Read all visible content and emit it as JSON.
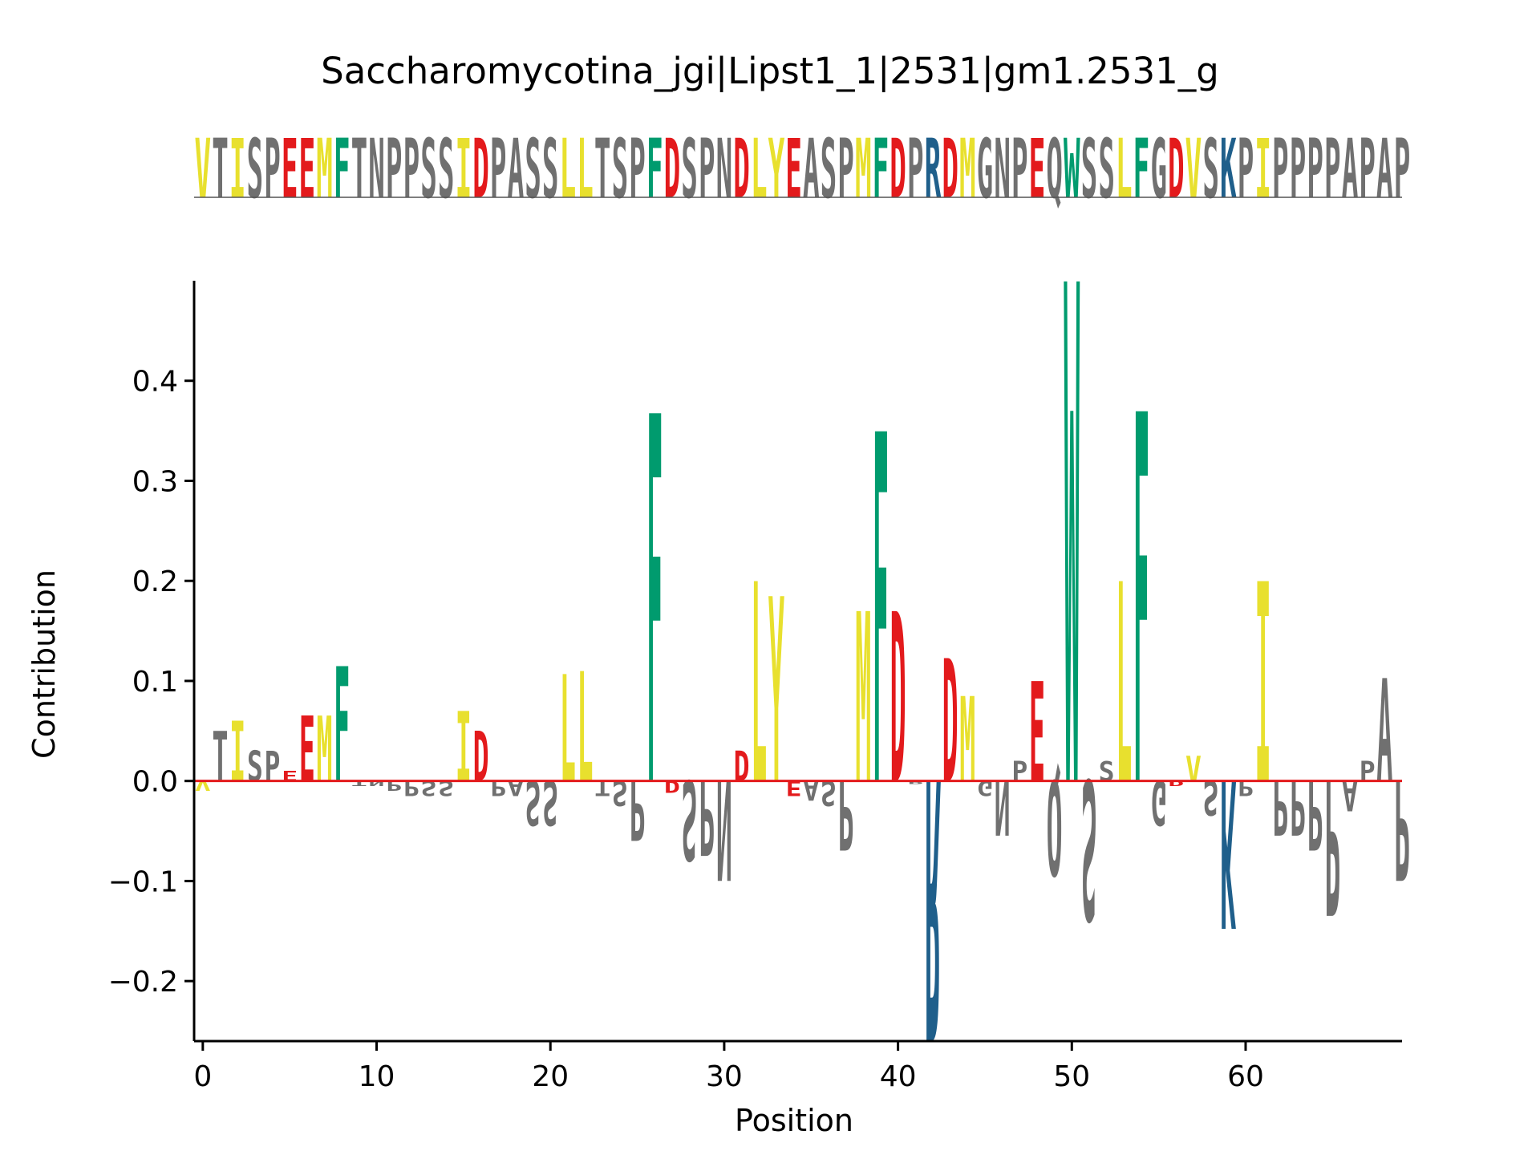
{
  "chart_data": {
    "type": "sequence-logo",
    "title": "Saccharomycotina_jgi|Lipst1_1|2531|gm1.2531_g",
    "xlabel": "Position",
    "ylabel": "Contribution",
    "xlim": [
      -0.5,
      69
    ],
    "ylim": [
      -0.26,
      0.5
    ],
    "xticks": [
      0,
      10,
      20,
      30,
      40,
      50,
      60
    ],
    "yticks": [
      -0.2,
      -0.1,
      0.0,
      0.1,
      0.2,
      0.3,
      0.4
    ],
    "ytick_labels": [
      "−0.2",
      "−0.1",
      "0.0",
      "0.1",
      "0.2",
      "0.3",
      "0.4"
    ],
    "xtick_labels": [
      "0",
      "10",
      "20",
      "30",
      "40",
      "50",
      "60"
    ],
    "colors": {
      "yellow": "#e8e02e",
      "gray": "#707070",
      "red": "#e31a1c",
      "green": "#009b6e",
      "blue": "#1f5f8b",
      "zero_line": "#e31a1c"
    },
    "residue_color_map": {
      "V": "yellow",
      "I": "yellow",
      "L": "yellow",
      "M": "yellow",
      "Y": "yellow",
      "E": "red",
      "D": "red",
      "F": "green",
      "W": "green",
      "R": "blue",
      "K": "blue",
      "T": "gray",
      "S": "gray",
      "P": "gray",
      "N": "gray",
      "A": "gray",
      "G": "gray",
      "Q": "gray"
    },
    "sequence": "VTISPEEMFTNPPSSIDPASSLLTSPFDSPNDLYEASPMFDPRDMGNPEQWSSLFGDVSKPIPPPPAPAP",
    "contribution": [
      -0.01,
      0.05,
      0.06,
      0.03,
      0.03,
      0.01,
      0.065,
      0.065,
      0.115,
      -0.005,
      -0.005,
      -0.01,
      -0.015,
      -0.015,
      -0.015,
      0.07,
      0.05,
      -0.015,
      -0.015,
      -0.045,
      -0.045,
      0.107,
      0.11,
      -0.015,
      -0.025,
      -0.06,
      0.368,
      -0.012,
      -0.08,
      -0.075,
      -0.1,
      0.03,
      0.2,
      0.185,
      -0.015,
      -0.02,
      -0.025,
      -0.07,
      0.17,
      0.35,
      0.17,
      -0.003,
      -0.26,
      0.123,
      0.085,
      -0.015,
      -0.055,
      0.02,
      0.1,
      -0.095,
      0.5,
      -0.14,
      0.02,
      0.2,
      0.37,
      -0.045,
      -0.005,
      0.025,
      -0.035,
      -0.148,
      -0.015,
      0.2,
      -0.055,
      -0.055,
      -0.07,
      -0.135,
      -0.03,
      0.02,
      0.103,
      -0.1
    ]
  }
}
